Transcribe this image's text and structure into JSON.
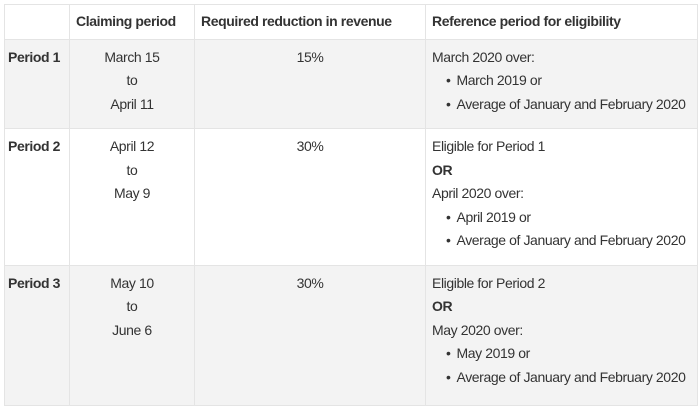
{
  "headers": [
    "",
    "Claiming period",
    "Required reduction in revenue",
    "Reference period for eligibility"
  ],
  "rows": [
    {
      "period": "Period 1",
      "start": "March 15",
      "to": "to",
      "end": "April 11",
      "reduction": "15%",
      "prior": "",
      "or": "",
      "reference": "March 2020 over:",
      "bullets": [
        "March 2019 or",
        "Average of January and February 2020"
      ]
    },
    {
      "period": "Period 2",
      "start": "April 12",
      "to": "to",
      "end": "May 9",
      "reduction": "30%",
      "prior": "Eligible for Period 1",
      "or": "OR",
      "reference": "April 2020 over:",
      "bullets": [
        "April 2019 or",
        "Average of January and February 2020"
      ]
    },
    {
      "period": "Period 3",
      "start": "May 10",
      "to": "to",
      "end": "June 6",
      "reduction": "30%",
      "prior": "Eligible for Period 2",
      "or": "OR",
      "reference": "May 2020 over:",
      "bullets": [
        "May 2019 or",
        "Average of January and February 2020"
      ]
    }
  ]
}
